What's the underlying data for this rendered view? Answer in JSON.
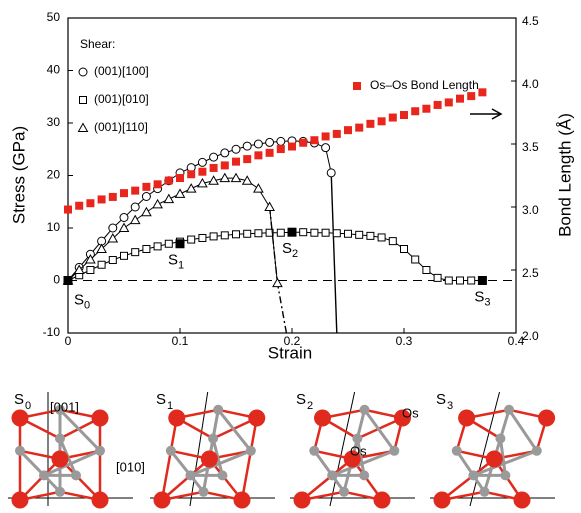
{
  "chart_data": {
    "type": "line",
    "xlabel": "Strain",
    "ylabel": "Stress (GPa)",
    "y2label": "Bond Length (Å)",
    "xlim": [
      0,
      0.4
    ],
    "xticks": [
      0,
      0.1,
      0.2,
      0.3,
      0.4
    ],
    "ylim": [
      -10,
      50
    ],
    "yticks": [
      -10,
      0,
      10,
      20,
      30,
      40,
      50
    ],
    "y2lim": [
      2,
      4.5
    ],
    "y2ticks": [
      {
        "value": 2,
        "label": "2.0"
      },
      2.5,
      {
        "value": 3,
        "label": "3.0"
      },
      3.5,
      {
        "value": 4,
        "label": "4.0"
      },
      4.5
    ],
    "legend_title": "Shear:",
    "reference_line": 0,
    "series": [
      {
        "name": "(001)[100]",
        "marker": "circle",
        "color": "#000000",
        "x": [
          0,
          0.01,
          0.02,
          0.03,
          0.04,
          0.05,
          0.06,
          0.07,
          0.08,
          0.09,
          0.1,
          0.11,
          0.12,
          0.13,
          0.14,
          0.15,
          0.16,
          0.17,
          0.18,
          0.19,
          0.2,
          0.21,
          0.22,
          0.23,
          0.235
        ],
        "values": [
          0,
          2.5,
          5,
          7.5,
          10,
          12,
          14,
          16,
          17.5,
          19,
          20.5,
          21.5,
          22.5,
          23.5,
          24.3,
          25,
          25.6,
          26,
          26.3,
          26.5,
          26.6,
          26.5,
          26.2,
          25.3,
          20.5
        ]
      },
      {
        "name": "(001)[010]",
        "marker": "square",
        "color": "#000000",
        "x": [
          0,
          0.01,
          0.02,
          0.03,
          0.04,
          0.05,
          0.06,
          0.07,
          0.08,
          0.09,
          0.1,
          0.11,
          0.12,
          0.13,
          0.14,
          0.15,
          0.16,
          0.17,
          0.18,
          0.19,
          0.2,
          0.21,
          0.22,
          0.23,
          0.24,
          0.25,
          0.26,
          0.27,
          0.28,
          0.29,
          0.3,
          0.31,
          0.32,
          0.33,
          0.34,
          0.35,
          0.36,
          0.37
        ],
        "values": [
          0,
          1,
          2,
          3,
          3.9,
          4.7,
          5.4,
          6,
          6.5,
          7,
          7.4,
          7.8,
          8.1,
          8.4,
          8.6,
          8.8,
          8.9,
          9,
          9.1,
          9.1,
          9.2,
          9.2,
          9.1,
          9.1,
          9,
          8.9,
          8.7,
          8.5,
          8.2,
          7.5,
          6,
          4,
          2,
          0.5,
          0,
          0,
          0,
          0
        ]
      },
      {
        "name": "(001)[110]",
        "marker": "triangle",
        "color": "#000000",
        "x": [
          0,
          0.01,
          0.02,
          0.03,
          0.04,
          0.05,
          0.06,
          0.07,
          0.08,
          0.09,
          0.1,
          0.11,
          0.12,
          0.13,
          0.14,
          0.15,
          0.16,
          0.17,
          0.18,
          0.187
        ],
        "values": [
          0,
          2,
          4,
          6,
          8,
          10,
          11.5,
          13,
          14.5,
          15.5,
          16.5,
          17.5,
          18.5,
          19,
          19.5,
          19.5,
          19,
          17.5,
          14,
          -0.5
        ]
      },
      {
        "name": "Os–Os Bond Length",
        "marker": "filled-square",
        "color": "#e8261c",
        "axis": "y2",
        "x": [
          0,
          0.01,
          0.02,
          0.03,
          0.04,
          0.05,
          0.06,
          0.07,
          0.08,
          0.09,
          0.1,
          0.11,
          0.12,
          0.13,
          0.14,
          0.15,
          0.16,
          0.17,
          0.18,
          0.19,
          0.2,
          0.21,
          0.22,
          0.23,
          0.24,
          0.25,
          0.26,
          0.27,
          0.28,
          0.29,
          0.3,
          0.31,
          0.32,
          0.33,
          0.34,
          0.35,
          0.36,
          0.37
        ],
        "values": [
          2.98,
          3.01,
          3.03,
          3.06,
          3.08,
          3.11,
          3.13,
          3.16,
          3.18,
          3.21,
          3.23,
          3.26,
          3.28,
          3.31,
          3.33,
          3.36,
          3.38,
          3.41,
          3.43,
          3.46,
          3.48,
          3.51,
          3.53,
          3.56,
          3.58,
          3.61,
          3.63,
          3.66,
          3.68,
          3.71,
          3.73,
          3.76,
          3.78,
          3.81,
          3.83,
          3.86,
          3.88,
          3.91
        ]
      }
    ],
    "fracture_lines": [
      {
        "style": "solid",
        "x": [
          0.235,
          0.24
        ],
        "values": [
          20.5,
          -10
        ]
      },
      {
        "style": "dashdot",
        "x": [
          0.18,
          0.187,
          0.195
        ],
        "values": [
          14,
          -0.5,
          -10
        ]
      }
    ],
    "points": [
      {
        "label": "S",
        "sub": "0",
        "x": 0,
        "y": 0
      },
      {
        "label": "S",
        "sub": "1",
        "x": 0.1,
        "y": 7
      },
      {
        "label": "S",
        "sub": "2",
        "x": 0.2,
        "y": 9.2
      },
      {
        "label": "S",
        "sub": "3",
        "x": 0.37,
        "y": 0
      }
    ]
  },
  "structures": [
    {
      "label": "S",
      "sub": "0",
      "notes": [
        "[001]",
        "[010]"
      ]
    },
    {
      "label": "S",
      "sub": "1",
      "notes": []
    },
    {
      "label": "S",
      "sub": "2",
      "notes": [
        "Os",
        "Os"
      ]
    },
    {
      "label": "S",
      "sub": "3",
      "notes": []
    }
  ]
}
